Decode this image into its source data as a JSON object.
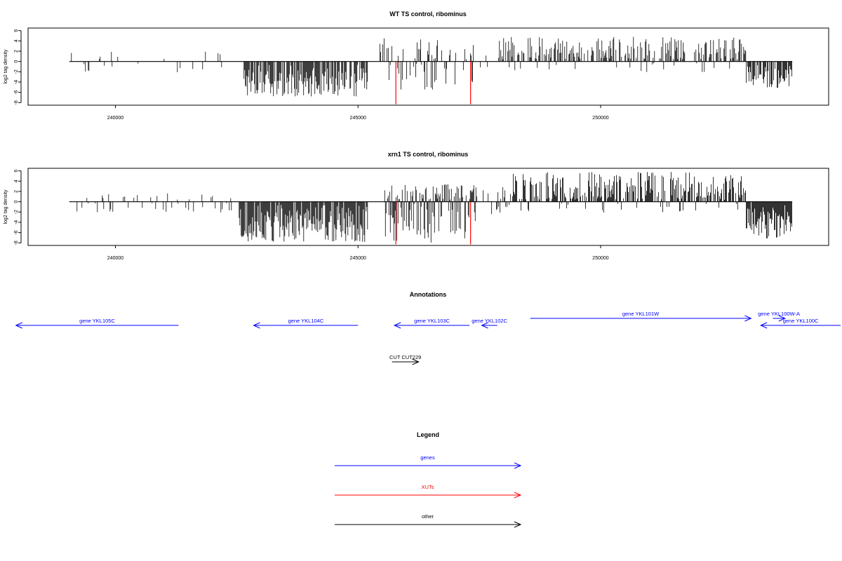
{
  "chart_data": [
    {
      "type": "bar",
      "title": "WT TS control, ribominus",
      "ylabel": "log2 tag density",
      "xlim": [
        238200,
        254700
      ],
      "ylim": [
        -8.5,
        6.5
      ],
      "yticks": [
        6,
        4,
        2,
        0,
        -2,
        -4,
        -6,
        -8
      ],
      "xticks": [
        240000,
        245000,
        250000
      ],
      "xtick_labels": [
        "240000",
        "245000",
        "250000"
      ],
      "grid": false,
      "legend": "none",
      "bar_color": "#000000",
      "highlight_color": "#ff0000",
      "segments": [
        {
          "from": 239050,
          "to": 242450,
          "density": 0.08,
          "mode": "low",
          "seed": 11
        },
        {
          "from": 242650,
          "to": 245200,
          "density": 0.75,
          "mode": "neg",
          "min": -6.8,
          "seed": 12
        },
        {
          "from": 245450,
          "to": 247400,
          "density": 0.45,
          "mode": "mix",
          "max": 4.2,
          "min": -5.6,
          "seed": 13
        },
        {
          "from": 247450,
          "to": 247900,
          "density": 0.12,
          "mode": "low",
          "seed": 14
        },
        {
          "from": 247900,
          "to": 253000,
          "density": 0.55,
          "mode": "pos",
          "max": 4.8,
          "seed": 15
        },
        {
          "from": 253000,
          "to": 253950,
          "density": 0.75,
          "mode": "neg",
          "min": -5.2,
          "seed": 16
        }
      ],
      "highlights": [
        {
          "x": 245780,
          "value": -8.3
        },
        {
          "x": 247320,
          "value": -8.3
        }
      ]
    },
    {
      "type": "bar",
      "title": "xrn1 TS control, ribominus",
      "ylabel": "log2 tag density",
      "xlim": [
        238200,
        254700
      ],
      "ylim": [
        -8.5,
        6.5
      ],
      "yticks": [
        6,
        4,
        2,
        0,
        -2,
        -4,
        -6,
        -8
      ],
      "xticks": [
        240000,
        245000,
        250000
      ],
      "xtick_labels": [
        "240000",
        "245000",
        "250000"
      ],
      "grid": false,
      "legend": "none",
      "bar_color": "#000000",
      "highlight_color": "#ff0000",
      "segments": [
        {
          "from": 239050,
          "to": 242450,
          "density": 0.18,
          "mode": "low",
          "seed": 21
        },
        {
          "from": 242550,
          "to": 245200,
          "density": 0.9,
          "mode": "neg",
          "min": -7.8,
          "seed": 22
        },
        {
          "from": 245550,
          "to": 247450,
          "density": 0.85,
          "mode": "mix",
          "max": 3.2,
          "min": -8.0,
          "seed": 23
        },
        {
          "from": 247450,
          "to": 248200,
          "density": 0.35,
          "mode": "mix",
          "max": 2.5,
          "min": -2.5,
          "seed": 24
        },
        {
          "from": 248200,
          "to": 253000,
          "density": 0.7,
          "mode": "pos",
          "max": 5.8,
          "seed": 25
        },
        {
          "from": 253000,
          "to": 253950,
          "density": 0.9,
          "mode": "neg",
          "min": -7.2,
          "seed": 26
        }
      ],
      "highlights": [
        {
          "x": 245780,
          "value": -8.3
        },
        {
          "x": 247320,
          "value": -8.3
        }
      ]
    }
  ],
  "annotations": {
    "title": "Annotations",
    "items": [
      {
        "label": "gene YKL105C",
        "start": 241300,
        "end": 237950,
        "row": 0,
        "kind": "gene"
      },
      {
        "label": "gene YKL104C",
        "start": 245000,
        "end": 242850,
        "row": 0,
        "kind": "gene"
      },
      {
        "label": "gene YKL103C",
        "start": 247300,
        "end": 245750,
        "row": 0,
        "kind": "gene"
      },
      {
        "label": "gene YKL102C",
        "start": 247870,
        "end": 247550,
        "row": 0,
        "kind": "gene"
      },
      {
        "label": "gene YKL101W",
        "start": 248550,
        "end": 253100,
        "row": 1,
        "kind": "gene"
      },
      {
        "label": "gene YKL100W-A",
        "start": 253550,
        "end": 253800,
        "row": 1,
        "kind": "gene"
      },
      {
        "label": "gene YKL100C",
        "start": 255200,
        "end": 253300,
        "row": 0,
        "kind": "gene"
      },
      {
        "label": "CUT CUT229",
        "start": 245700,
        "end": 246250,
        "row": 2,
        "kind": "other"
      }
    ]
  },
  "legend": {
    "title": "Legend",
    "items": [
      {
        "label": "genes",
        "color": "#0000ff"
      },
      {
        "label": "XUTs",
        "color": "#ff0000"
      },
      {
        "label": "other",
        "color": "#000000"
      }
    ]
  }
}
